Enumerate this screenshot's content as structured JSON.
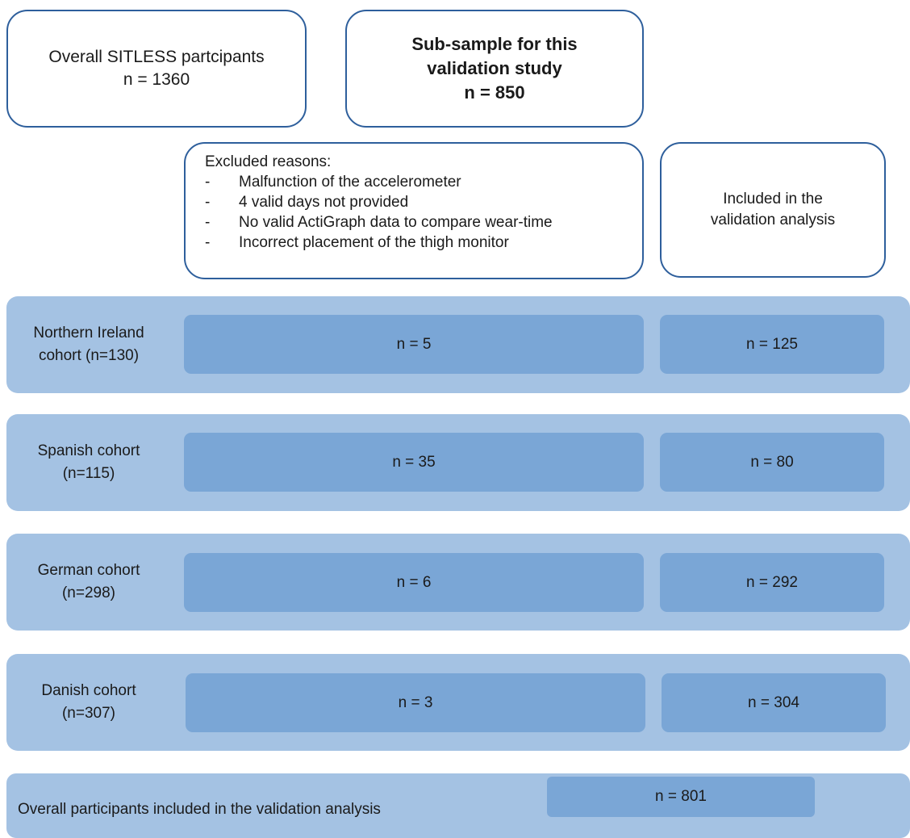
{
  "top": {
    "overall_label": "Overall SITLESS partcipants",
    "overall_n": "n = 1360",
    "sub_line1": "Sub-sample for this",
    "sub_line2": "validation study",
    "sub_n": "n = 850"
  },
  "excluded": {
    "title": "Excluded reasons:",
    "reasons": [
      "Malfunction of the accelerometer",
      "4 valid days not provided",
      "No valid ActiGraph data to compare wear-time",
      "Incorrect placement of the thigh monitor"
    ]
  },
  "included": {
    "line1": "Included in the",
    "line2": "validation analysis"
  },
  "cohorts": [
    {
      "line1": "Northern Ireland",
      "line2": "cohort (n=130)",
      "excluded": "n = 5",
      "included": "n = 125"
    },
    {
      "line1": "Spanish cohort",
      "line2": "(n=115)",
      "excluded": "n = 35",
      "included": "n = 80"
    },
    {
      "line1": "German cohort",
      "line2": "(n=298)",
      "excluded": "n = 6",
      "included": "n = 292"
    },
    {
      "line1": "Danish cohort",
      "line2": "(n=307)",
      "excluded": "n = 3",
      "included": "n = 304"
    }
  ],
  "overall": {
    "label": "Overall participants included in the validation analysis",
    "n": "n = 801"
  }
}
